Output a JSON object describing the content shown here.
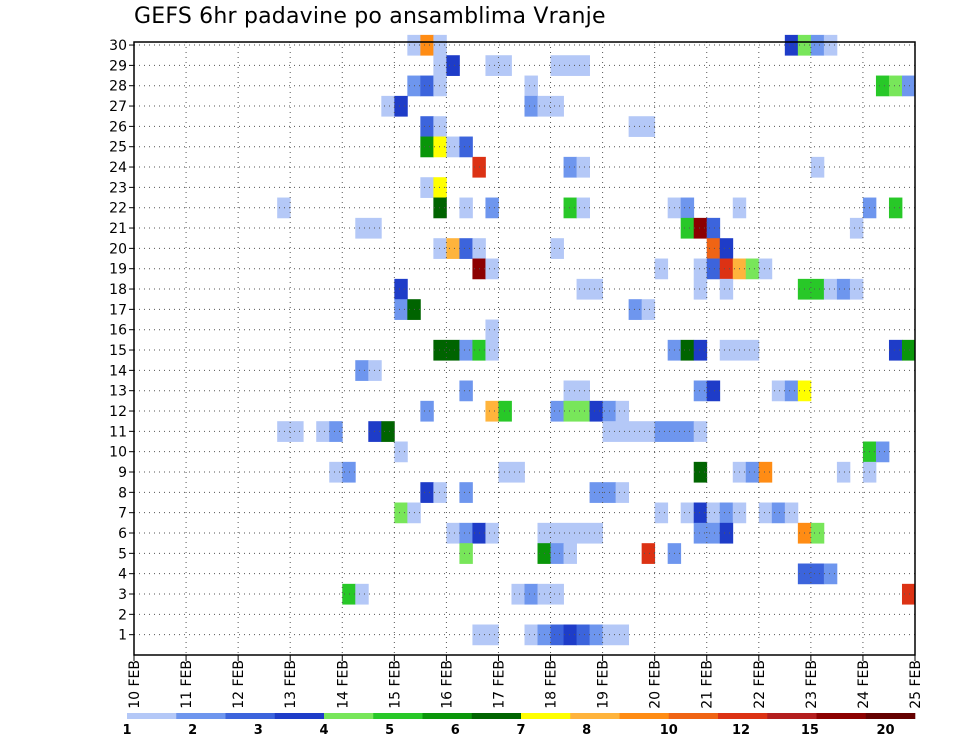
{
  "title": "GEFS 6hr padavine po ansamblima Vranje",
  "chart_data": {
    "type": "heatmap",
    "title": "GEFS 6hr padavine po ansamblima Vranje",
    "xlabel": "",
    "ylabel": "",
    "x_tick_labels": [
      "10 FEB",
      "11 FEB",
      "12 FEB",
      "13 FEB",
      "14 FEB",
      "15 FEB",
      "16 FEB",
      "17 FEB",
      "18 FEB",
      "19 FEB",
      "20 FEB",
      "21 FEB",
      "22 FEB",
      "23 FEB",
      "24 FEB",
      "25 FEB"
    ],
    "x_range_days": [
      10,
      25
    ],
    "y_tick_labels": [
      "1",
      "2",
      "3",
      "4",
      "5",
      "6",
      "7",
      "8",
      "9",
      "10",
      "11",
      "12",
      "13",
      "14",
      "15",
      "16",
      "17",
      "18",
      "19",
      "20",
      "21",
      "22",
      "23",
      "24",
      "25",
      "26",
      "27",
      "28",
      "29",
      "30"
    ],
    "y_range": [
      0,
      30
    ],
    "grid": true,
    "colorbar": {
      "labels": [
        "1",
        "2",
        "3",
        "4",
        "5",
        "6",
        "7",
        "8",
        "10",
        "12",
        "15",
        "20"
      ],
      "colors": [
        "#b4c8f7",
        "#6e96ee",
        "#3c64dc",
        "#1e3cc8",
        "#78e65a",
        "#28c828",
        "#0a960a",
        "#006400",
        "#ffff00",
        "#ffb43c",
        "#ff8c14",
        "#f06414",
        "#dc3214",
        "#b41e1e",
        "#8c0000",
        "#640000"
      ]
    },
    "cells_note": "cells: [ensemble_member, day_of_feb_start, day_of_feb_end, color_index]",
    "cells": [
      [
        30,
        15.25,
        15.5,
        0
      ],
      [
        30,
        15.5,
        15.75,
        10
      ],
      [
        30,
        15.75,
        16,
        0
      ],
      [
        30,
        22.5,
        22.75,
        3
      ],
      [
        30,
        22.75,
        23,
        4
      ],
      [
        30,
        23,
        23.25,
        1
      ],
      [
        30,
        23.25,
        23.5,
        0
      ],
      [
        29,
        15.75,
        16,
        0
      ],
      [
        29,
        16,
        16.25,
        3
      ],
      [
        29,
        16.75,
        17.25,
        0
      ],
      [
        29,
        18,
        18.75,
        0
      ],
      [
        28,
        15.25,
        15.5,
        1
      ],
      [
        28,
        15.5,
        15.75,
        2
      ],
      [
        28,
        15.75,
        16,
        0
      ],
      [
        28,
        17.5,
        17.75,
        0
      ],
      [
        28,
        24.25,
        24.5,
        5
      ],
      [
        28,
        24.5,
        24.75,
        4
      ],
      [
        28,
        24.75,
        25,
        1
      ],
      [
        27,
        14.75,
        15,
        0
      ],
      [
        27,
        15,
        15.25,
        3
      ],
      [
        27,
        17.5,
        17.75,
        1
      ],
      [
        27,
        17.75,
        18.25,
        0
      ],
      [
        26,
        15.5,
        15.75,
        2
      ],
      [
        26,
        15.75,
        16,
        0
      ],
      [
        26,
        19.5,
        20,
        0
      ],
      [
        25,
        15.5,
        15.75,
        6
      ],
      [
        25,
        15.75,
        16,
        8
      ],
      [
        25,
        16,
        16.25,
        0
      ],
      [
        25,
        16.25,
        16.5,
        2
      ],
      [
        24,
        16.5,
        16.75,
        12
      ],
      [
        24,
        18.25,
        18.5,
        1
      ],
      [
        24,
        18.5,
        18.75,
        0
      ],
      [
        24,
        23,
        23.25,
        0
      ],
      [
        23,
        15.5,
        15.75,
        0
      ],
      [
        23,
        15.75,
        16,
        8
      ],
      [
        22,
        12.75,
        13,
        0
      ],
      [
        22,
        15.75,
        16,
        7
      ],
      [
        22,
        16.25,
        16.5,
        0
      ],
      [
        22,
        16.75,
        17,
        1
      ],
      [
        22,
        18.25,
        18.5,
        5
      ],
      [
        22,
        18.5,
        18.75,
        0
      ],
      [
        22,
        20.25,
        20.5,
        0
      ],
      [
        22,
        20.5,
        20.75,
        1
      ],
      [
        22,
        21.5,
        21.75,
        0
      ],
      [
        22,
        24,
        24.25,
        1
      ],
      [
        22,
        24.5,
        24.75,
        5
      ],
      [
        21,
        14.25,
        14.75,
        0
      ],
      [
        21,
        20.5,
        20.75,
        5
      ],
      [
        21,
        20.75,
        21,
        14
      ],
      [
        21,
        21,
        21.25,
        2
      ],
      [
        21,
        23.75,
        24,
        0
      ],
      [
        20,
        15.75,
        16,
        0
      ],
      [
        20,
        16,
        16.25,
        9
      ],
      [
        20,
        16.25,
        16.5,
        2
      ],
      [
        20,
        16.5,
        16.75,
        0
      ],
      [
        20,
        18,
        18.25,
        0
      ],
      [
        20,
        21,
        21.25,
        11
      ],
      [
        20,
        21.25,
        21.5,
        3
      ],
      [
        19,
        16.5,
        16.75,
        14
      ],
      [
        19,
        16.75,
        17,
        0
      ],
      [
        19,
        20,
        20.25,
        0
      ],
      [
        19,
        20.75,
        21,
        0
      ],
      [
        19,
        21,
        21.25,
        2
      ],
      [
        19,
        21.25,
        21.5,
        12
      ],
      [
        19,
        21.5,
        21.75,
        9
      ],
      [
        19,
        21.75,
        22,
        4
      ],
      [
        19,
        22,
        22.25,
        0
      ],
      [
        18,
        15,
        15.25,
        3
      ],
      [
        18,
        18.5,
        19,
        0
      ],
      [
        18,
        20.75,
        21,
        0
      ],
      [
        18,
        21.25,
        21.5,
        0
      ],
      [
        18,
        22.75,
        23.25,
        5
      ],
      [
        18,
        23.25,
        23.5,
        0
      ],
      [
        18,
        23.5,
        23.75,
        1
      ],
      [
        18,
        23.75,
        24,
        0
      ],
      [
        17,
        15,
        15.25,
        1
      ],
      [
        17,
        15.25,
        15.5,
        7
      ],
      [
        17,
        19.5,
        19.75,
        1
      ],
      [
        17,
        19.75,
        20,
        0
      ],
      [
        16,
        16.75,
        17,
        0
      ],
      [
        15,
        15.75,
        16.25,
        7
      ],
      [
        15,
        16.25,
        16.5,
        1
      ],
      [
        15,
        16.5,
        16.75,
        5
      ],
      [
        15,
        16.75,
        17,
        0
      ],
      [
        15,
        20.25,
        20.5,
        1
      ],
      [
        15,
        20.5,
        20.75,
        7
      ],
      [
        15,
        20.75,
        21,
        3
      ],
      [
        15,
        21.25,
        22,
        0
      ],
      [
        15,
        24.5,
        24.75,
        3
      ],
      [
        15,
        24.75,
        25,
        6
      ],
      [
        14,
        14.25,
        14.5,
        1
      ],
      [
        14,
        14.5,
        14.75,
        0
      ],
      [
        13,
        16.25,
        16.5,
        1
      ],
      [
        13,
        18.25,
        18.75,
        0
      ],
      [
        13,
        20.75,
        21,
        1
      ],
      [
        13,
        21,
        21.25,
        3
      ],
      [
        13,
        22.25,
        22.5,
        0
      ],
      [
        13,
        22.5,
        22.75,
        1
      ],
      [
        13,
        22.75,
        23,
        8
      ],
      [
        12,
        15.5,
        15.75,
        1
      ],
      [
        12,
        16.75,
        17,
        9
      ],
      [
        12,
        17,
        17.25,
        5
      ],
      [
        12,
        18,
        18.25,
        1
      ],
      [
        12,
        18.25,
        18.75,
        4
      ],
      [
        12,
        18.75,
        19,
        3
      ],
      [
        12,
        19,
        19.25,
        1
      ],
      [
        12,
        19.25,
        19.5,
        0
      ],
      [
        11,
        12.75,
        13.25,
        0
      ],
      [
        11,
        13.5,
        13.75,
        0
      ],
      [
        11,
        13.75,
        14,
        1
      ],
      [
        11,
        14.5,
        14.75,
        3
      ],
      [
        11,
        14.75,
        15,
        7
      ],
      [
        11,
        19,
        20,
        0
      ],
      [
        11,
        20,
        20.75,
        1
      ],
      [
        11,
        20.75,
        21,
        0
      ],
      [
        10,
        15,
        15.25,
        0
      ],
      [
        10,
        24,
        24.25,
        5
      ],
      [
        10,
        24.25,
        24.5,
        1
      ],
      [
        9,
        13.75,
        14,
        0
      ],
      [
        9,
        14,
        14.25,
        1
      ],
      [
        9,
        17,
        17.5,
        0
      ],
      [
        9,
        20.75,
        21,
        7
      ],
      [
        9,
        21.5,
        21.75,
        0
      ],
      [
        9,
        21.75,
        22,
        1
      ],
      [
        9,
        22,
        22.25,
        10
      ],
      [
        9,
        23.5,
        23.75,
        0
      ],
      [
        9,
        24,
        24.25,
        0
      ],
      [
        8,
        15.5,
        15.75,
        3
      ],
      [
        8,
        15.75,
        16,
        0
      ],
      [
        8,
        16.25,
        16.5,
        1
      ],
      [
        8,
        18.75,
        19.25,
        1
      ],
      [
        8,
        19.25,
        19.5,
        0
      ],
      [
        7,
        15,
        15.25,
        4
      ],
      [
        7,
        15.25,
        15.5,
        0
      ],
      [
        7,
        20,
        20.25,
        0
      ],
      [
        7,
        20.5,
        20.75,
        0
      ],
      [
        7,
        20.75,
        21,
        3
      ],
      [
        7,
        21,
        21.25,
        0
      ],
      [
        7,
        21.25,
        21.5,
        1
      ],
      [
        7,
        21.5,
        21.75,
        0
      ],
      [
        7,
        22,
        22.25,
        0
      ],
      [
        7,
        22.25,
        22.5,
        1
      ],
      [
        7,
        22.5,
        22.75,
        0
      ],
      [
        6,
        16,
        16.25,
        0
      ],
      [
        6,
        16.25,
        16.5,
        1
      ],
      [
        6,
        16.5,
        16.75,
        3
      ],
      [
        6,
        16.75,
        17,
        0
      ],
      [
        6,
        17.75,
        19,
        0
      ],
      [
        6,
        20.75,
        21.25,
        1
      ],
      [
        6,
        21.25,
        21.5,
        3
      ],
      [
        6,
        22.75,
        23,
        10
      ],
      [
        6,
        23,
        23.25,
        4
      ],
      [
        5,
        16.25,
        16.5,
        4
      ],
      [
        5,
        17.75,
        18,
        6
      ],
      [
        5,
        18,
        18.25,
        1
      ],
      [
        5,
        18.25,
        18.5,
        0
      ],
      [
        5,
        19.75,
        20,
        12
      ],
      [
        5,
        20.25,
        20.5,
        1
      ],
      [
        4,
        22.75,
        23.25,
        2
      ],
      [
        4,
        23.25,
        23.5,
        1
      ],
      [
        3,
        14,
        14.25,
        5
      ],
      [
        3,
        14.25,
        14.5,
        0
      ],
      [
        3,
        17.25,
        17.5,
        0
      ],
      [
        3,
        17.5,
        17.75,
        1
      ],
      [
        3,
        17.75,
        18.25,
        0
      ],
      [
        3,
        24.75,
        25,
        12
      ],
      [
        1,
        16.5,
        17,
        0
      ],
      [
        1,
        17.5,
        17.75,
        0
      ],
      [
        1,
        17.75,
        18,
        1
      ],
      [
        1,
        18,
        18.25,
        2
      ],
      [
        1,
        18.25,
        18.5,
        3
      ],
      [
        1,
        18.5,
        18.75,
        2
      ],
      [
        1,
        18.75,
        19,
        1
      ],
      [
        1,
        19,
        19.5,
        0
      ]
    ]
  }
}
